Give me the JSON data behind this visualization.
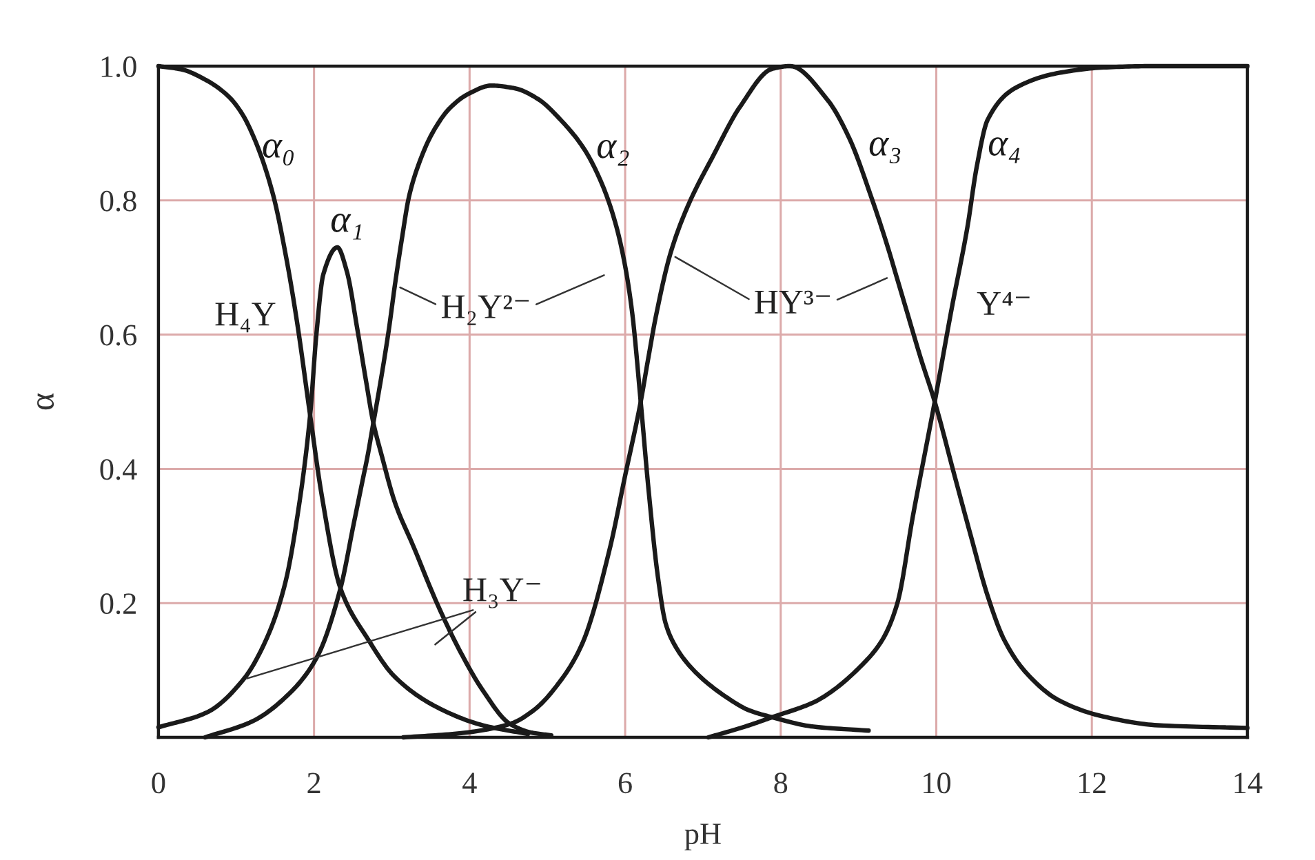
{
  "chart_data": {
    "type": "line",
    "xlabel": "pH",
    "ylabel": "α",
    "xlim": [
      0,
      14
    ],
    "ylim": [
      0,
      1.0
    ],
    "xticks": [
      0,
      2,
      4,
      6,
      8,
      10,
      12,
      14
    ],
    "yticks": [
      0.2,
      0.4,
      0.6,
      0.8,
      {
        "value": 1.0,
        "label": "1.0"
      }
    ],
    "grid": true,
    "line_style": "solid",
    "series": [
      {
        "name": "α₀",
        "color": "#1a1a1a",
        "x": [
          0,
          0.3,
          0.6,
          0.9,
          1.07,
          1.24,
          1.47,
          1.65,
          1.78,
          1.95,
          2.1,
          2.34,
          2.69,
          3.04,
          3.58,
          4.17,
          4.75
        ],
        "values": [
          1.0,
          0.995,
          0.98,
          0.955,
          0.93,
          0.89,
          0.81,
          0.71,
          0.62,
          0.48,
          0.36,
          0.222,
          0.147,
          0.09,
          0.045,
          0.018,
          0.005
        ]
      },
      {
        "name": "α₁",
        "color": "#1a1a1a",
        "x": [
          0,
          0.62,
          1.09,
          1.39,
          1.63,
          1.8,
          1.95,
          2.03,
          2.12,
          2.3,
          2.42,
          2.56,
          2.67,
          2.76,
          2.87,
          3.04,
          3.28,
          3.58,
          3.87,
          4.17,
          4.52,
          4.8,
          5.05
        ],
        "values": [
          0.015,
          0.037,
          0.086,
          0.147,
          0.23,
          0.34,
          0.48,
          0.6,
          0.69,
          0.73,
          0.695,
          0.606,
          0.53,
          0.47,
          0.42,
          0.35,
          0.284,
          0.2,
          0.13,
          0.07,
          0.02,
          0.007,
          0.003
        ]
      },
      {
        "name": "α₂",
        "color": "#1a1a1a",
        "x": [
          0.6,
          1.21,
          1.68,
          2.04,
          2.34,
          2.51,
          2.63,
          2.69,
          2.75,
          2.87,
          2.96,
          3.04,
          3.13,
          3.22,
          3.34,
          3.52,
          3.75,
          3.99,
          4.28,
          4.58,
          4.88,
          5.17,
          5.47,
          5.7,
          5.88,
          6.0,
          6.09,
          6.2,
          6.3,
          6.42,
          6.52,
          6.65,
          6.88,
          7.3,
          7.6,
          7.89,
          8.42,
          9.13
        ],
        "values": [
          0.0,
          0.024,
          0.065,
          0.12,
          0.222,
          0.318,
          0.386,
          0.42,
          0.46,
          0.54,
          0.606,
          0.674,
          0.743,
          0.805,
          0.852,
          0.9,
          0.938,
          0.959,
          0.971,
          0.967,
          0.951,
          0.92,
          0.877,
          0.825,
          0.764,
          0.702,
          0.633,
          0.5,
          0.37,
          0.24,
          0.17,
          0.135,
          0.1,
          0.06,
          0.04,
          0.03,
          0.016,
          0.01
        ]
      },
      {
        "name": "α₃",
        "color": "#1a1a1a",
        "x": [
          3.15,
          3.87,
          4.52,
          4.82,
          5.18,
          5.45,
          5.8,
          6.0,
          6.2,
          6.29,
          6.4,
          6.58,
          6.8,
          7.13,
          7.48,
          7.89,
          8.12,
          8.6,
          8.88,
          9.17,
          9.38,
          9.48,
          9.59,
          9.8,
          9.98,
          10.23,
          10.44,
          10.66,
          10.87,
          11.15,
          11.58,
          12.15,
          12.85,
          14
        ],
        "values": [
          0.0,
          0.006,
          0.02,
          0.04,
          0.086,
          0.14,
          0.28,
          0.39,
          0.5,
          0.56,
          0.63,
          0.72,
          0.79,
          0.866,
          0.94,
          0.996,
          1.0,
          0.95,
          0.893,
          0.803,
          0.729,
          0.69,
          0.647,
          0.565,
          0.5,
          0.392,
          0.302,
          0.211,
          0.146,
          0.097,
          0.055,
          0.031,
          0.018,
          0.014
        ]
      },
      {
        "name": "α₄",
        "color": "#1a1a1a",
        "x": [
          7.07,
          7.54,
          7.89,
          8.42,
          8.6,
          9.02,
          9.31,
          9.5,
          9.7,
          9.98,
          10.2,
          10.4,
          10.52,
          10.66,
          11.01,
          11.58,
          12.15,
          12.8,
          14
        ],
        "values": [
          0.0,
          0.016,
          0.03,
          0.052,
          0.064,
          0.105,
          0.146,
          0.2,
          0.33,
          0.5,
          0.64,
          0.76,
          0.85,
          0.92,
          0.967,
          0.99,
          0.998,
          1.0,
          1.0
        ]
      }
    ],
    "annotations": [
      {
        "text": "H₄Y",
        "x": 1.78,
        "y": 0.62
      },
      {
        "text": "H₂Y²⁻",
        "x": 3.04,
        "y": 0.674
      },
      {
        "text": "HY³⁻",
        "x": 6.58,
        "y": 0.72
      },
      {
        "text": "Y⁴⁻",
        "x": 10.2,
        "y": 0.64
      },
      {
        "text": "H₃Y⁻",
        "x": 1.09,
        "y": 0.086
      }
    ]
  }
}
